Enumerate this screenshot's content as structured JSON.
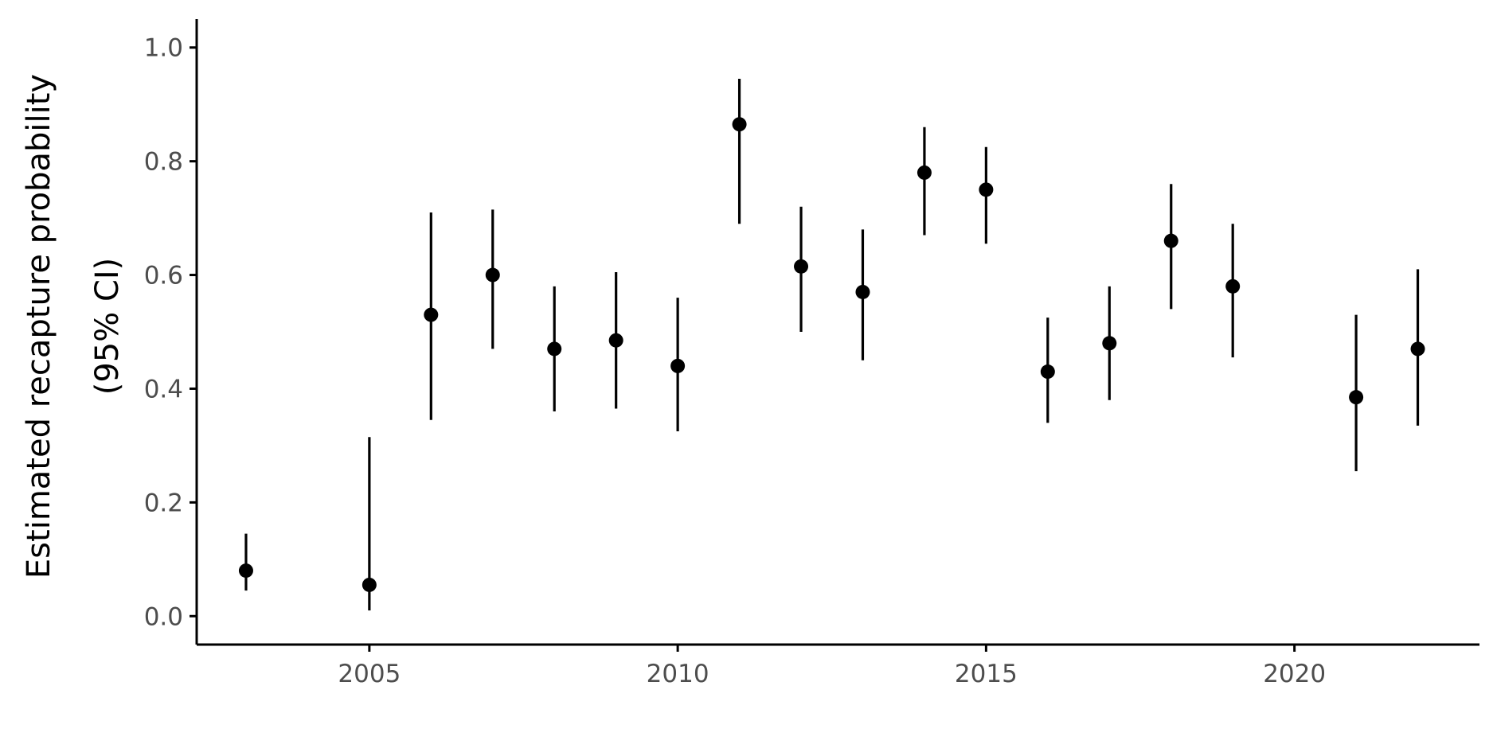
{
  "chart_data": {
    "type": "scatter",
    "title": "",
    "xlabel": "",
    "ylabel_lines": [
      "Estimated recapture probability",
      "(95% CI)"
    ],
    "xlim": [
      2002.2,
      2023.0
    ],
    "ylim": [
      -0.05,
      1.05
    ],
    "x_ticks": [
      2005,
      2010,
      2015,
      2020
    ],
    "y_ticks": [
      0.0,
      0.2,
      0.4,
      0.6,
      0.8,
      1.0
    ],
    "y_tick_labels": [
      "0.0",
      "0.2",
      "0.4",
      "0.6",
      "0.8",
      "1.0"
    ],
    "grid": false,
    "legend": "none",
    "colors": {
      "point": "#000000",
      "axis": "#000000",
      "tick_text": "#4d4d4d"
    },
    "series": [
      {
        "x": [
          2003,
          2005,
          2006,
          2007,
          2008,
          2009,
          2010,
          2011,
          2012,
          2013,
          2014,
          2015,
          2016,
          2017,
          2018,
          2019,
          2021,
          2022
        ],
        "y": [
          0.08,
          0.055,
          0.53,
          0.6,
          0.47,
          0.485,
          0.44,
          0.865,
          0.615,
          0.57,
          0.78,
          0.75,
          0.43,
          0.48,
          0.66,
          0.58,
          0.385,
          0.47
        ],
        "lower": [
          0.045,
          0.01,
          0.345,
          0.47,
          0.36,
          0.365,
          0.325,
          0.69,
          0.5,
          0.45,
          0.67,
          0.655,
          0.34,
          0.38,
          0.54,
          0.455,
          0.255,
          0.335
        ],
        "upper": [
          0.145,
          0.315,
          0.71,
          0.715,
          0.58,
          0.605,
          0.56,
          0.945,
          0.72,
          0.68,
          0.86,
          0.825,
          0.525,
          0.58,
          0.76,
          0.69,
          0.53,
          0.61
        ]
      }
    ]
  }
}
